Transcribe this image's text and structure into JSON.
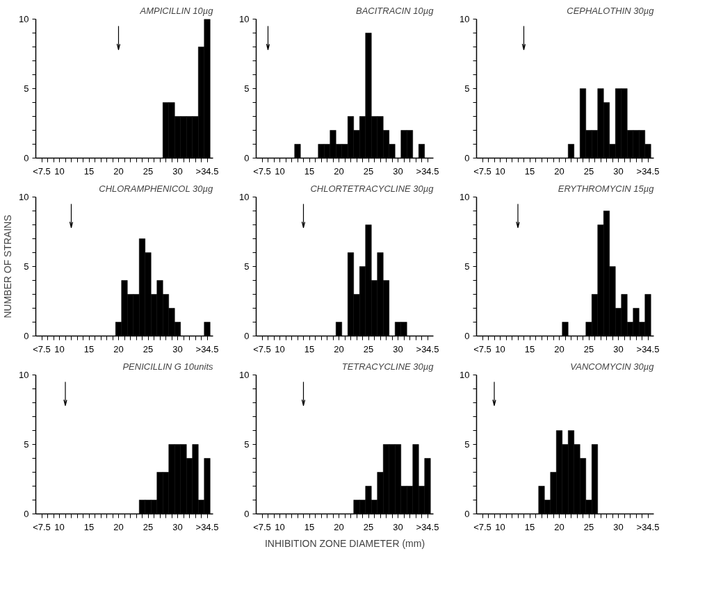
{
  "chart_data": [
    {
      "type": "histogram",
      "title": "AMPICILLIN 10µg",
      "color": "#000000",
      "bins": [
        27.5,
        28.5,
        29.5,
        30.5,
        31.5,
        32.5,
        33.5,
        34.5,
        35.5
      ],
      "values": [
        4,
        4,
        3,
        3,
        3,
        3,
        8,
        10
      ],
      "xlim": [
        6,
        36
      ],
      "ylim": [
        0,
        10
      ],
      "xticks": [
        {
          "value": 7,
          "label": "<7.5"
        },
        {
          "value": 8,
          "label": null
        },
        {
          "value": 9,
          "label": null
        },
        10,
        {
          "value": 11,
          "label": null
        },
        {
          "value": 12,
          "label": null
        },
        {
          "value": 13,
          "label": null
        },
        {
          "value": 14,
          "label": null
        },
        15,
        {
          "value": 16,
          "label": null
        },
        {
          "value": 17,
          "label": null
        },
        {
          "value": 18,
          "label": null
        },
        {
          "value": 19,
          "label": null
        },
        20,
        {
          "value": 21,
          "label": null
        },
        {
          "value": 22,
          "label": null
        },
        {
          "value": 23,
          "label": null
        },
        {
          "value": 24,
          "label": null
        },
        25,
        {
          "value": 26,
          "label": null
        },
        {
          "value": 27,
          "label": null
        },
        {
          "value": 28,
          "label": null
        },
        {
          "value": 29,
          "label": null
        },
        30,
        {
          "value": 31,
          "label": null
        },
        {
          "value": 32,
          "label": null
        },
        {
          "value": 33,
          "label": null
        },
        {
          "value": 34,
          "label": null
        },
        {
          "value": 35,
          "label": ">34.5"
        }
      ],
      "yticks": [
        0,
        {
          "value": 1,
          "label": null
        },
        {
          "value": 2,
          "label": null
        },
        {
          "value": 3,
          "label": null
        },
        {
          "value": 4,
          "label": null
        },
        5,
        {
          "value": 6,
          "label": null
        },
        {
          "value": 7,
          "label": null
        },
        {
          "value": 8,
          "label": null
        },
        {
          "value": 9,
          "label": null
        },
        10
      ],
      "ref_lines": [
        {
          "axis": "x",
          "value": 20
        }
      ]
    },
    {
      "type": "histogram",
      "title": "BACITRACIN 10µg",
      "color": "#000000",
      "bins": [
        12.5,
        13.5,
        14.5,
        15.5,
        16.5,
        17.5,
        18.5,
        19.5,
        20.5,
        21.5,
        22.5,
        23.5,
        24.5,
        25.5,
        26.5,
        27.5,
        28.5,
        29.5,
        30.5,
        31.5,
        32.5,
        33.5,
        34.5
      ],
      "values": [
        1,
        0,
        0,
        0,
        1,
        1,
        2,
        1,
        1,
        3,
        2,
        3,
        9,
        3,
        3,
        2,
        1,
        0,
        2,
        2,
        0,
        1
      ],
      "xlim": [
        6,
        36
      ],
      "ylim": [
        0,
        10
      ],
      "xticks": [
        {
          "value": 7,
          "label": "<7.5"
        },
        {
          "value": 8,
          "label": null
        },
        {
          "value": 9,
          "label": null
        },
        10,
        {
          "value": 11,
          "label": null
        },
        {
          "value": 12,
          "label": null
        },
        {
          "value": 13,
          "label": null
        },
        {
          "value": 14,
          "label": null
        },
        15,
        {
          "value": 16,
          "label": null
        },
        {
          "value": 17,
          "label": null
        },
        {
          "value": 18,
          "label": null
        },
        {
          "value": 19,
          "label": null
        },
        20,
        {
          "value": 21,
          "label": null
        },
        {
          "value": 22,
          "label": null
        },
        {
          "value": 23,
          "label": null
        },
        {
          "value": 24,
          "label": null
        },
        25,
        {
          "value": 26,
          "label": null
        },
        {
          "value": 27,
          "label": null
        },
        {
          "value": 28,
          "label": null
        },
        {
          "value": 29,
          "label": null
        },
        30,
        {
          "value": 31,
          "label": null
        },
        {
          "value": 32,
          "label": null
        },
        {
          "value": 33,
          "label": null
        },
        {
          "value": 34,
          "label": null
        },
        {
          "value": 35,
          "label": ">34.5"
        }
      ],
      "yticks": [
        0,
        {
          "value": 1,
          "label": null
        },
        {
          "value": 2,
          "label": null
        },
        {
          "value": 3,
          "label": null
        },
        {
          "value": 4,
          "label": null
        },
        5,
        {
          "value": 6,
          "label": null
        },
        {
          "value": 7,
          "label": null
        },
        {
          "value": 8,
          "label": null
        },
        {
          "value": 9,
          "label": null
        },
        10
      ],
      "ref_lines": [
        {
          "axis": "x",
          "value": 8
        }
      ]
    },
    {
      "type": "histogram",
      "title": "CEPHALOTHIN 30µg",
      "color": "#000000",
      "bins": [
        21.5,
        22.5,
        23.5,
        24.5,
        25.5,
        26.5,
        27.5,
        28.5,
        29.5,
        30.5,
        31.5,
        32.5,
        33.5,
        34.5,
        35.5
      ],
      "values": [
        1,
        0,
        5,
        2,
        2,
        5,
        4,
        1,
        5,
        5,
        2,
        2,
        2,
        1
      ],
      "xlim": [
        6,
        36
      ],
      "ylim": [
        0,
        10
      ],
      "xticks": [
        {
          "value": 7,
          "label": "<7.5"
        },
        {
          "value": 8,
          "label": null
        },
        {
          "value": 9,
          "label": null
        },
        10,
        {
          "value": 11,
          "label": null
        },
        {
          "value": 12,
          "label": null
        },
        {
          "value": 13,
          "label": null
        },
        {
          "value": 14,
          "label": null
        },
        15,
        {
          "value": 16,
          "label": null
        },
        {
          "value": 17,
          "label": null
        },
        {
          "value": 18,
          "label": null
        },
        {
          "value": 19,
          "label": null
        },
        20,
        {
          "value": 21,
          "label": null
        },
        {
          "value": 22,
          "label": null
        },
        {
          "value": 23,
          "label": null
        },
        {
          "value": 24,
          "label": null
        },
        25,
        {
          "value": 26,
          "label": null
        },
        {
          "value": 27,
          "label": null
        },
        {
          "value": 28,
          "label": null
        },
        {
          "value": 29,
          "label": null
        },
        30,
        {
          "value": 31,
          "label": null
        },
        {
          "value": 32,
          "label": null
        },
        {
          "value": 33,
          "label": null
        },
        {
          "value": 34,
          "label": null
        },
        {
          "value": 35,
          "label": ">34.5"
        }
      ],
      "yticks": [
        0,
        {
          "value": 1,
          "label": null
        },
        {
          "value": 2,
          "label": null
        },
        {
          "value": 3,
          "label": null
        },
        {
          "value": 4,
          "label": null
        },
        5,
        {
          "value": 6,
          "label": null
        },
        {
          "value": 7,
          "label": null
        },
        {
          "value": 8,
          "label": null
        },
        {
          "value": 9,
          "label": null
        },
        10
      ],
      "ref_lines": [
        {
          "axis": "x",
          "value": 14
        }
      ]
    },
    {
      "type": "histogram",
      "title": "CHLORAMPHENICOL 30µg",
      "ylabel": "NUMBER OF STRAINS",
      "color": "#000000",
      "bins": [
        19.5,
        20.5,
        21.5,
        22.5,
        23.5,
        24.5,
        25.5,
        26.5,
        27.5,
        28.5,
        29.5,
        30.5,
        31.5,
        32.5,
        33.5,
        34.5,
        35.5
      ],
      "values": [
        1,
        4,
        3,
        3,
        7,
        6,
        3,
        4,
        3,
        2,
        1,
        0,
        0,
        0,
        0,
        1
      ],
      "xlim": [
        6,
        36
      ],
      "ylim": [
        0,
        10
      ],
      "xticks": [
        {
          "value": 7,
          "label": "<7.5"
        },
        {
          "value": 8,
          "label": null
        },
        {
          "value": 9,
          "label": null
        },
        10,
        {
          "value": 11,
          "label": null
        },
        {
          "value": 12,
          "label": null
        },
        {
          "value": 13,
          "label": null
        },
        {
          "value": 14,
          "label": null
        },
        15,
        {
          "value": 16,
          "label": null
        },
        {
          "value": 17,
          "label": null
        },
        {
          "value": 18,
          "label": null
        },
        {
          "value": 19,
          "label": null
        },
        20,
        {
          "value": 21,
          "label": null
        },
        {
          "value": 22,
          "label": null
        },
        {
          "value": 23,
          "label": null
        },
        {
          "value": 24,
          "label": null
        },
        25,
        {
          "value": 26,
          "label": null
        },
        {
          "value": 27,
          "label": null
        },
        {
          "value": 28,
          "label": null
        },
        {
          "value": 29,
          "label": null
        },
        30,
        {
          "value": 31,
          "label": null
        },
        {
          "value": 32,
          "label": null
        },
        {
          "value": 33,
          "label": null
        },
        {
          "value": 34,
          "label": null
        },
        {
          "value": 35,
          "label": ">34.5"
        }
      ],
      "yticks": [
        0,
        {
          "value": 1,
          "label": null
        },
        {
          "value": 2,
          "label": null
        },
        {
          "value": 3,
          "label": null
        },
        {
          "value": 4,
          "label": null
        },
        5,
        {
          "value": 6,
          "label": null
        },
        {
          "value": 7,
          "label": null
        },
        {
          "value": 8,
          "label": null
        },
        {
          "value": 9,
          "label": null
        },
        10
      ],
      "ref_lines": [
        {
          "axis": "x",
          "value": 12
        }
      ]
    },
    {
      "type": "histogram",
      "title": "CHLORTETRACYCLINE 30µg",
      "color": "#000000",
      "bins": [
        19.5,
        20.5,
        21.5,
        22.5,
        23.5,
        24.5,
        25.5,
        26.5,
        27.5,
        28.5,
        29.5,
        30.5,
        31.5
      ],
      "values": [
        1,
        0,
        6,
        3,
        5,
        8,
        4,
        6,
        4,
        0,
        1,
        1
      ],
      "xlim": [
        6,
        36
      ],
      "ylim": [
        0,
        10
      ],
      "xticks": [
        {
          "value": 7,
          "label": "<7.5"
        },
        {
          "value": 8,
          "label": null
        },
        {
          "value": 9,
          "label": null
        },
        10,
        {
          "value": 11,
          "label": null
        },
        {
          "value": 12,
          "label": null
        },
        {
          "value": 13,
          "label": null
        },
        {
          "value": 14,
          "label": null
        },
        15,
        {
          "value": 16,
          "label": null
        },
        {
          "value": 17,
          "label": null
        },
        {
          "value": 18,
          "label": null
        },
        {
          "value": 19,
          "label": null
        },
        20,
        {
          "value": 21,
          "label": null
        },
        {
          "value": 22,
          "label": null
        },
        {
          "value": 23,
          "label": null
        },
        {
          "value": 24,
          "label": null
        },
        25,
        {
          "value": 26,
          "label": null
        },
        {
          "value": 27,
          "label": null
        },
        {
          "value": 28,
          "label": null
        },
        {
          "value": 29,
          "label": null
        },
        30,
        {
          "value": 31,
          "label": null
        },
        {
          "value": 32,
          "label": null
        },
        {
          "value": 33,
          "label": null
        },
        {
          "value": 34,
          "label": null
        },
        {
          "value": 35,
          "label": ">34.5"
        }
      ],
      "yticks": [
        0,
        {
          "value": 1,
          "label": null
        },
        {
          "value": 2,
          "label": null
        },
        {
          "value": 3,
          "label": null
        },
        {
          "value": 4,
          "label": null
        },
        5,
        {
          "value": 6,
          "label": null
        },
        {
          "value": 7,
          "label": null
        },
        {
          "value": 8,
          "label": null
        },
        {
          "value": 9,
          "label": null
        },
        10
      ],
      "ref_lines": [
        {
          "axis": "x",
          "value": 14
        }
      ]
    },
    {
      "type": "histogram",
      "title": "ERYTHROMYCIN 15µg",
      "color": "#000000",
      "bins": [
        20.5,
        21.5,
        22.5,
        23.5,
        24.5,
        25.5,
        26.5,
        27.5,
        28.5,
        29.5,
        30.5,
        31.5,
        32.5,
        33.5,
        34.5,
        35.5
      ],
      "values": [
        1,
        0,
        0,
        0,
        1,
        3,
        8,
        9,
        5,
        2,
        3,
        1,
        2,
        1,
        3
      ],
      "xlim": [
        6,
        36
      ],
      "ylim": [
        0,
        10
      ],
      "xticks": [
        {
          "value": 7,
          "label": "<7.5"
        },
        {
          "value": 8,
          "label": null
        },
        {
          "value": 9,
          "label": null
        },
        10,
        {
          "value": 11,
          "label": null
        },
        {
          "value": 12,
          "label": null
        },
        {
          "value": 13,
          "label": null
        },
        {
          "value": 14,
          "label": null
        },
        15,
        {
          "value": 16,
          "label": null
        },
        {
          "value": 17,
          "label": null
        },
        {
          "value": 18,
          "label": null
        },
        {
          "value": 19,
          "label": null
        },
        20,
        {
          "value": 21,
          "label": null
        },
        {
          "value": 22,
          "label": null
        },
        {
          "value": 23,
          "label": null
        },
        {
          "value": 24,
          "label": null
        },
        25,
        {
          "value": 26,
          "label": null
        },
        {
          "value": 27,
          "label": null
        },
        {
          "value": 28,
          "label": null
        },
        {
          "value": 29,
          "label": null
        },
        30,
        {
          "value": 31,
          "label": null
        },
        {
          "value": 32,
          "label": null
        },
        {
          "value": 33,
          "label": null
        },
        {
          "value": 34,
          "label": null
        },
        {
          "value": 35,
          "label": ">34.5"
        }
      ],
      "yticks": [
        0,
        {
          "value": 1,
          "label": null
        },
        {
          "value": 2,
          "label": null
        },
        {
          "value": 3,
          "label": null
        },
        {
          "value": 4,
          "label": null
        },
        5,
        {
          "value": 6,
          "label": null
        },
        {
          "value": 7,
          "label": null
        },
        {
          "value": 8,
          "label": null
        },
        {
          "value": 9,
          "label": null
        },
        10
      ],
      "ref_lines": [
        {
          "axis": "x",
          "value": 13
        }
      ]
    },
    {
      "type": "histogram",
      "title": "PENICILLIN G 10units",
      "color": "#000000",
      "bins": [
        23.5,
        24.5,
        25.5,
        26.5,
        27.5,
        28.5,
        29.5,
        30.5,
        31.5,
        32.5,
        33.5,
        34.5,
        35.5
      ],
      "values": [
        1,
        1,
        1,
        3,
        3,
        5,
        5,
        5,
        4,
        5,
        1,
        4
      ],
      "xlim": [
        6,
        36
      ],
      "ylim": [
        0,
        10
      ],
      "xticks": [
        {
          "value": 7,
          "label": "<7.5"
        },
        {
          "value": 8,
          "label": null
        },
        {
          "value": 9,
          "label": null
        },
        10,
        {
          "value": 11,
          "label": null
        },
        {
          "value": 12,
          "label": null
        },
        {
          "value": 13,
          "label": null
        },
        {
          "value": 14,
          "label": null
        },
        15,
        {
          "value": 16,
          "label": null
        },
        {
          "value": 17,
          "label": null
        },
        {
          "value": 18,
          "label": null
        },
        {
          "value": 19,
          "label": null
        },
        20,
        {
          "value": 21,
          "label": null
        },
        {
          "value": 22,
          "label": null
        },
        {
          "value": 23,
          "label": null
        },
        {
          "value": 24,
          "label": null
        },
        25,
        {
          "value": 26,
          "label": null
        },
        {
          "value": 27,
          "label": null
        },
        {
          "value": 28,
          "label": null
        },
        {
          "value": 29,
          "label": null
        },
        30,
        {
          "value": 31,
          "label": null
        },
        {
          "value": 32,
          "label": null
        },
        {
          "value": 33,
          "label": null
        },
        {
          "value": 34,
          "label": null
        },
        {
          "value": 35,
          "label": ">34.5"
        }
      ],
      "yticks": [
        0,
        {
          "value": 1,
          "label": null
        },
        {
          "value": 2,
          "label": null
        },
        {
          "value": 3,
          "label": null
        },
        {
          "value": 4,
          "label": null
        },
        5,
        {
          "value": 6,
          "label": null
        },
        {
          "value": 7,
          "label": null
        },
        {
          "value": 8,
          "label": null
        },
        {
          "value": 9,
          "label": null
        },
        10
      ],
      "ref_lines": [
        {
          "axis": "x",
          "value": 11
        }
      ]
    },
    {
      "type": "histogram",
      "title": "TETRACYCLINE 30µg",
      "xlabel": "INHIBITION ZONE DIAMETER (mm)",
      "color": "#000000",
      "bins": [
        22.5,
        23.5,
        24.5,
        25.5,
        26.5,
        27.5,
        28.5,
        29.5,
        30.5,
        31.5,
        32.5,
        33.5,
        34.5,
        35.5
      ],
      "values": [
        1,
        1,
        2,
        1,
        3,
        5,
        5,
        5,
        2,
        2,
        5,
        2,
        4
      ],
      "xlim": [
        6,
        36
      ],
      "ylim": [
        0,
        10
      ],
      "xticks": [
        {
          "value": 7,
          "label": "<7.5"
        },
        {
          "value": 8,
          "label": null
        },
        {
          "value": 9,
          "label": null
        },
        10,
        {
          "value": 11,
          "label": null
        },
        {
          "value": 12,
          "label": null
        },
        {
          "value": 13,
          "label": null
        },
        {
          "value": 14,
          "label": null
        },
        15,
        {
          "value": 16,
          "label": null
        },
        {
          "value": 17,
          "label": null
        },
        {
          "value": 18,
          "label": null
        },
        {
          "value": 19,
          "label": null
        },
        20,
        {
          "value": 21,
          "label": null
        },
        {
          "value": 22,
          "label": null
        },
        {
          "value": 23,
          "label": null
        },
        {
          "value": 24,
          "label": null
        },
        25,
        {
          "value": 26,
          "label": null
        },
        {
          "value": 27,
          "label": null
        },
        {
          "value": 28,
          "label": null
        },
        {
          "value": 29,
          "label": null
        },
        30,
        {
          "value": 31,
          "label": null
        },
        {
          "value": 32,
          "label": null
        },
        {
          "value": 33,
          "label": null
        },
        {
          "value": 34,
          "label": null
        },
        {
          "value": 35,
          "label": ">34.5"
        }
      ],
      "yticks": [
        0,
        {
          "value": 1,
          "label": null
        },
        {
          "value": 2,
          "label": null
        },
        {
          "value": 3,
          "label": null
        },
        {
          "value": 4,
          "label": null
        },
        5,
        {
          "value": 6,
          "label": null
        },
        {
          "value": 7,
          "label": null
        },
        {
          "value": 8,
          "label": null
        },
        {
          "value": 9,
          "label": null
        },
        10
      ],
      "ref_lines": [
        {
          "axis": "x",
          "value": 14
        }
      ]
    },
    {
      "type": "histogram",
      "title": "VANCOMYCIN 30µg",
      "color": "#000000",
      "bins": [
        16.5,
        17.5,
        18.5,
        19.5,
        20.5,
        21.5,
        22.5,
        23.5,
        24.5,
        25.5,
        26.5
      ],
      "values": [
        2,
        1,
        3,
        6,
        5,
        6,
        5,
        4,
        1,
        5
      ],
      "xlim": [
        6,
        36
      ],
      "ylim": [
        0,
        10
      ],
      "xticks": [
        {
          "value": 7,
          "label": "<7.5"
        },
        {
          "value": 8,
          "label": null
        },
        {
          "value": 9,
          "label": null
        },
        10,
        {
          "value": 11,
          "label": null
        },
        {
          "value": 12,
          "label": null
        },
        {
          "value": 13,
          "label": null
        },
        {
          "value": 14,
          "label": null
        },
        15,
        {
          "value": 16,
          "label": null
        },
        {
          "value": 17,
          "label": null
        },
        {
          "value": 18,
          "label": null
        },
        {
          "value": 19,
          "label": null
        },
        20,
        {
          "value": 21,
          "label": null
        },
        {
          "value": 22,
          "label": null
        },
        {
          "value": 23,
          "label": null
        },
        {
          "value": 24,
          "label": null
        },
        25,
        {
          "value": 26,
          "label": null
        },
        {
          "value": 27,
          "label": null
        },
        {
          "value": 28,
          "label": null
        },
        {
          "value": 29,
          "label": null
        },
        30,
        {
          "value": 31,
          "label": null
        },
        {
          "value": 32,
          "label": null
        },
        {
          "value": 33,
          "label": null
        },
        {
          "value": 34,
          "label": null
        },
        {
          "value": 35,
          "label": ">34.5"
        }
      ],
      "yticks": [
        0,
        {
          "value": 1,
          "label": null
        },
        {
          "value": 2,
          "label": null
        },
        {
          "value": 3,
          "label": null
        },
        {
          "value": 4,
          "label": null
        },
        5,
        {
          "value": 6,
          "label": null
        },
        {
          "value": 7,
          "label": null
        },
        {
          "value": 8,
          "label": null
        },
        {
          "value": 9,
          "label": null
        },
        10
      ],
      "ref_lines": [
        {
          "axis": "x",
          "value": 9
        }
      ]
    }
  ]
}
